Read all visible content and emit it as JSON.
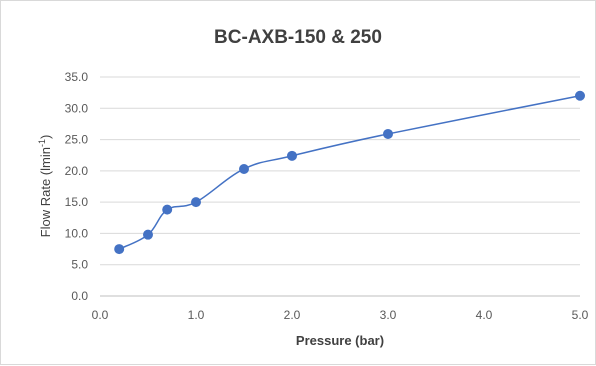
{
  "chart_data": {
    "type": "scatter",
    "title": "BC-AXB-150 & 250",
    "xlabel": "Pressure (bar)",
    "ylabel": {
      "main": "Flow Rate (lmin",
      "sup": "-1",
      "close": ")"
    },
    "xlim": [
      0,
      5
    ],
    "ylim": [
      0,
      35
    ],
    "grid": "horizontal",
    "x_ticks": [
      "0.0",
      "1.0",
      "2.0",
      "3.0",
      "4.0",
      "5.0"
    ],
    "y_ticks": [
      "0.0",
      "5.0",
      "10.0",
      "15.0",
      "20.0",
      "25.0",
      "30.0",
      "35.0"
    ],
    "series": [
      {
        "x": [
          0.2,
          0.5,
          0.7,
          1.0,
          1.5,
          2.0,
          3.0,
          5.0
        ],
        "y": [
          7.5,
          9.8,
          13.8,
          15.0,
          20.3,
          22.4,
          25.9,
          32.0
        ],
        "line": "smooth",
        "color": "#4472c4"
      }
    ]
  }
}
